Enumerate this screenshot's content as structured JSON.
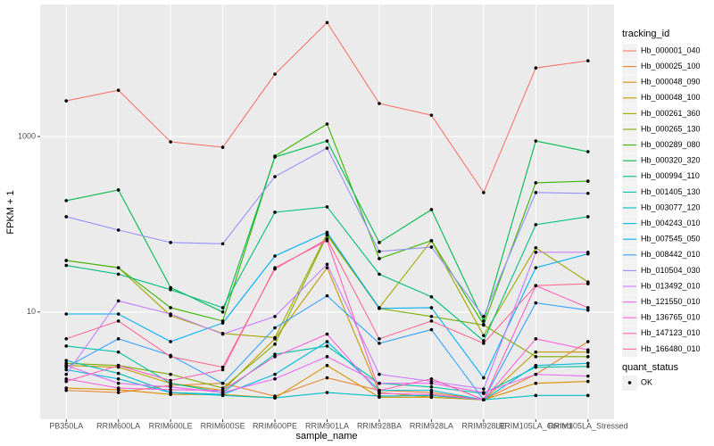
{
  "chart_data": {
    "type": "line",
    "x_label": "sample_name",
    "y_label": "FPKM + 1",
    "log_y": true,
    "grid": true,
    "ylim": [
      0.6,
      32000
    ],
    "yticks": [
      10,
      1000
    ],
    "legend_title": "tracking_id",
    "legend_position": "right",
    "point_legend_title": "quant_status",
    "point_legend": [
      "OK"
    ],
    "point_color": "#000000",
    "categories": [
      "PB350LA",
      "RRIM600LA",
      "RRIM600LE",
      "RRIM600SE",
      "RRIM600PE",
      "RRIM901LA",
      "RRIM928BA",
      "RRIM928LA",
      "RRIM928LE",
      "RRIM105LA_Control",
      "RRIM105LA_Stressed"
    ],
    "series": [
      {
        "name": "Hb_000001_040",
        "color": "#F8766D",
        "values": [
          2550,
          3370,
          870,
          755,
          5140,
          19900,
          2380,
          1750,
          230,
          6050,
          7300
        ]
      },
      {
        "name": "Hb_000025_100",
        "color": "#EA8331",
        "values": [
          1.28,
          1.21,
          1.46,
          1.54,
          1.1,
          1.78,
          1.28,
          1.21,
          1.0,
          1.95,
          4.6
        ]
      },
      {
        "name": "Hb_000048_090",
        "color": "#D89000",
        "values": [
          1.36,
          1.3,
          1.15,
          1.15,
          1.05,
          2.46,
          1.07,
          1.07,
          1.0,
          1.54,
          1.62
        ]
      },
      {
        "name": "Hb_000048_100",
        "color": "#C09B00",
        "values": [
          2.46,
          2.35,
          1.54,
          1.28,
          4.95,
          32,
          1.21,
          1.07,
          1.0,
          3.5,
          3.5
        ]
      },
      {
        "name": "Hb_000261_360",
        "color": "#A3A500",
        "values": [
          38.7,
          32,
          9.1,
          5.7,
          5.1,
          78,
          11.2,
          65,
          5.4,
          54,
          22
        ]
      },
      {
        "name": "Hb_000265_130",
        "color": "#7CAE00",
        "values": [
          2.6,
          2.46,
          1.95,
          1.36,
          4.3,
          75,
          11,
          8.9,
          7.1,
          3.1,
          3.1
        ]
      },
      {
        "name": "Hb_000289_080",
        "color": "#39B600",
        "values": [
          38.7,
          32,
          11.2,
          7.9,
          598,
          1390,
          40.6,
          65,
          7.2,
          297,
          310
        ]
      },
      {
        "name": "Hb_000320_320",
        "color": "#00BB4E",
        "values": [
          186,
          246,
          19,
          10,
          584,
          890,
          62,
          147,
          7.9,
          890,
          672
        ]
      },
      {
        "name": "Hb_000994_110",
        "color": "#00BF7D",
        "values": [
          34,
          27,
          18,
          11.2,
          137,
          158,
          27,
          14.9,
          4.7,
          99,
          122
        ]
      },
      {
        "name": "Hb_001405_130",
        "color": "#00C1A3",
        "values": [
          4.1,
          3.5,
          1.54,
          1.21,
          3.3,
          4.1,
          1.54,
          1.4,
          1.18,
          2.35,
          2.4
        ]
      },
      {
        "name": "Hb_003077_120",
        "color": "#00BFC4",
        "values": [
          2.8,
          2.0,
          1.21,
          1.12,
          1.05,
          1.21,
          1.1,
          1.12,
          1.0,
          1.12,
          1.12
        ]
      },
      {
        "name": "Hb_004243_010",
        "color": "#00BAE0",
        "values": [
          2.2,
          1.73,
          1.21,
          1.15,
          1.95,
          4.6,
          1.28,
          1.28,
          1.0,
          2.46,
          2.6
        ]
      },
      {
        "name": "Hb_007545_050",
        "color": "#00B0F6",
        "values": [
          9.5,
          9.5,
          4.6,
          7.5,
          43.5,
          81,
          11,
          11.2,
          1.78,
          32,
          46
        ]
      },
      {
        "name": "Hb_008442_010",
        "color": "#35A2FF",
        "values": [
          2.35,
          4.95,
          3.2,
          1.54,
          6.6,
          15.3,
          4.4,
          6.3,
          1.0,
          12.7,
          10.5
        ]
      },
      {
        "name": "Hb_010504_030",
        "color": "#9590FF",
        "values": [
          122,
          86,
          62,
          60,
          349,
          738,
          49,
          55,
          8.9,
          230,
          225
        ]
      },
      {
        "name": "Hb_013492_010",
        "color": "#C77CFF",
        "values": [
          1.95,
          13.4,
          9.5,
          5.6,
          8.9,
          35,
          1.95,
          1.62,
          1.33,
          48,
          48
        ]
      },
      {
        "name": "Hb_121550_010",
        "color": "#E76BF3",
        "values": [
          2.46,
          1.54,
          1.4,
          1.21,
          1.73,
          3.1,
          1.54,
          1.54,
          1.21,
          1.95,
          1.86
        ]
      },
      {
        "name": "Hb_136765_010",
        "color": "#FA62DB",
        "values": [
          1.73,
          1.36,
          1.3,
          1.28,
          3.1,
          5.6,
          1.18,
          1.15,
          1.0,
          4.95,
          3.7
        ]
      },
      {
        "name": "Hb_147123_010",
        "color": "#FF62BC",
        "values": [
          1.62,
          2.46,
          1.66,
          2.2,
          32,
          65,
          1.28,
          1.73,
          1.0,
          20,
          11.2
        ]
      },
      {
        "name": "Hb_166480_010",
        "color": "#FF6C91",
        "values": [
          4.95,
          7.9,
          3.1,
          2.35,
          31,
          68,
          4.95,
          7.9,
          4.4,
          20,
          21
        ]
      }
    ]
  }
}
